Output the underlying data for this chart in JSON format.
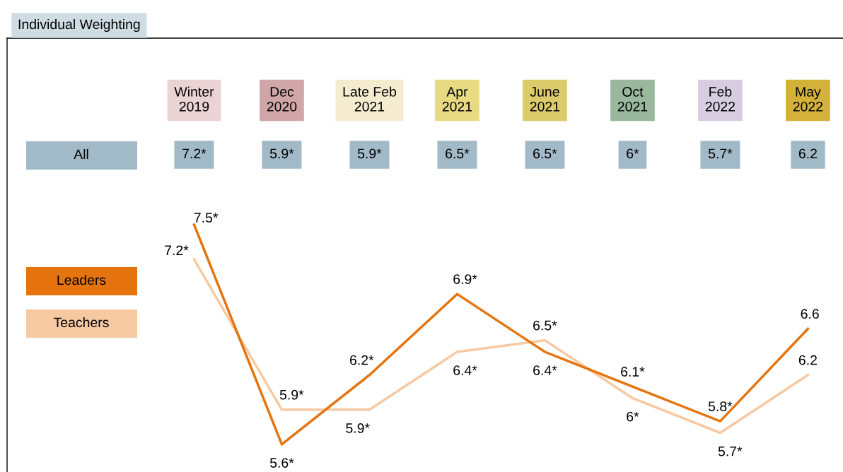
{
  "chart_data": {
    "type": "line",
    "title": "Individual Weighting",
    "categories": [
      "Winter\n2019",
      "Dec\n2020",
      "Late Feb\n2021",
      "Apr\n2021",
      "June\n2021",
      "Oct\n2021",
      "Feb\n2022",
      "May\n2022"
    ],
    "series": [
      {
        "name": "Leaders",
        "color": "#e5740f",
        "values": [
          7.5,
          5.6,
          6.2,
          6.9,
          6.4,
          6.1,
          5.8,
          6.6
        ],
        "value_labels": [
          "7.5*",
          "5.6*",
          "6.2*",
          "6.9*",
          "6.4*",
          "6.1*",
          "5.8*",
          "6.6"
        ]
      },
      {
        "name": "Teachers",
        "color": "#f7c9a2",
        "values": [
          7.2,
          5.9,
          5.9,
          6.4,
          6.5,
          6.0,
          5.7,
          6.2
        ],
        "value_labels": [
          "7.2*",
          "5.9*",
          "5.9*",
          "6.4*",
          "6.5*",
          "6*",
          "5.7*",
          "6.2"
        ]
      }
    ],
    "annotations": [
      "All",
      "7.2*",
      "5.9*",
      "5.9*",
      "6.5*",
      "6.5*",
      "6*",
      "5.7*",
      "6.2"
    ],
    "legend": "left",
    "marker": "none",
    "line_style": "solid"
  }
}
